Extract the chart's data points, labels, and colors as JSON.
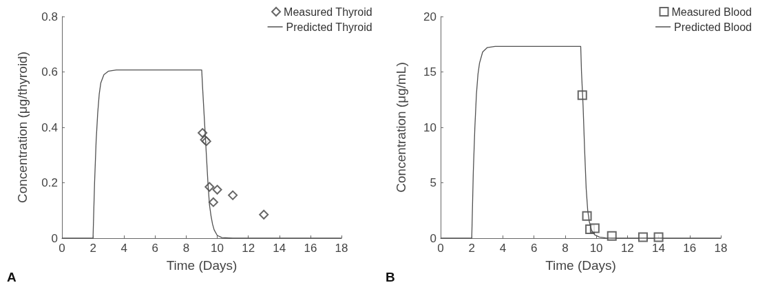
{
  "chart_data": [
    {
      "type": "scatter",
      "xlabel": "Time (Days)",
      "ylabel": "Concentration (μg/thyroid)",
      "xlim": [
        0,
        18
      ],
      "xticks": [
        0,
        2,
        4,
        6,
        8,
        10,
        12,
        14,
        16,
        18
      ],
      "ylim": [
        0,
        0.8
      ],
      "yticks": [
        0,
        0.2,
        0.4,
        0.6,
        0.8
      ],
      "grid": false,
      "legend": "top right",
      "annotations": [
        "A"
      ],
      "series": [
        {
          "name": "Measured Thyroid",
          "marker": "diamond",
          "color": "#404040",
          "x": [
            9.05,
            9.2,
            9.3,
            9.5,
            9.75,
            10,
            11,
            13
          ],
          "values": [
            0.38,
            0.355,
            0.35,
            0.185,
            0.13,
            0.175,
            0.155,
            0.085
          ]
        },
        {
          "name": "Predicted Thyroid",
          "type": "line",
          "color": "#505050",
          "x": [
            0,
            2,
            2.05,
            2.1,
            2.2,
            2.3,
            2.4,
            2.5,
            2.7,
            3,
            3.5,
            9,
            9.05,
            9.15,
            9.3,
            9.4,
            9.5,
            9.6,
            9.7,
            9.8,
            10,
            10.3,
            11,
            18
          ],
          "values": [
            0,
            0,
            0.1,
            0.2,
            0.35,
            0.45,
            0.52,
            0.56,
            0.59,
            0.603,
            0.607,
            0.607,
            0.55,
            0.45,
            0.3,
            0.2,
            0.12,
            0.08,
            0.05,
            0.03,
            0.01,
            0.002,
            0,
            0
          ]
        }
      ]
    },
    {
      "type": "scatter",
      "xlabel": "Time (Days)",
      "ylabel": "Concentration (μg/mL)",
      "xlim": [
        0,
        18
      ],
      "xticks": [
        0,
        2,
        4,
        6,
        8,
        10,
        12,
        14,
        16,
        18
      ],
      "ylim": [
        0,
        20
      ],
      "yticks": [
        0,
        5,
        10,
        15,
        20
      ],
      "grid": false,
      "legend": "top right",
      "annotations": [
        "B"
      ],
      "series": [
        {
          "name": "Measured Blood",
          "marker": "square",
          "color": "#404040",
          "x": [
            9.1,
            9.4,
            9.6,
            9.9,
            11,
            13,
            14
          ],
          "values": [
            12.9,
            2.0,
            0.8,
            0.9,
            0.2,
            0.1,
            0.1
          ]
        },
        {
          "name": "Predicted Blood",
          "type": "line",
          "color": "#505050",
          "x": [
            0,
            2,
            2.05,
            2.1,
            2.2,
            2.3,
            2.4,
            2.5,
            2.7,
            3,
            3.5,
            9,
            9.05,
            9.15,
            9.25,
            9.35,
            9.45,
            9.55,
            9.7,
            9.9,
            10.2,
            10.6,
            11,
            18
          ],
          "values": [
            0,
            0,
            3,
            6,
            10,
            13,
            14.8,
            15.8,
            16.8,
            17.2,
            17.3,
            17.3,
            15,
            12,
            8,
            4.5,
            2.5,
            1.5,
            0.7,
            0.3,
            0.1,
            0.02,
            0,
            0
          ]
        }
      ]
    }
  ]
}
